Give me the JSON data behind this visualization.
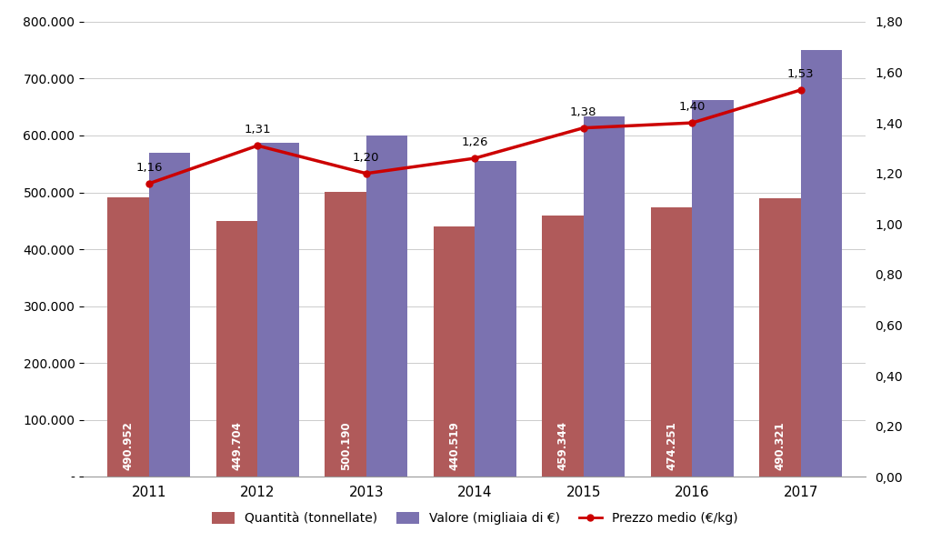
{
  "years": [
    2011,
    2012,
    2013,
    2014,
    2015,
    2016,
    2017
  ],
  "quantita": [
    490952,
    449704,
    500190,
    440519,
    459344,
    474251,
    490321
  ],
  "valore": [
    570000,
    588000,
    600000,
    555000,
    634000,
    663000,
    750000
  ],
  "prezzo_medio": [
    1.16,
    1.31,
    1.2,
    1.26,
    1.38,
    1.4,
    1.53
  ],
  "bar_color_quantita": "#b05a5a",
  "bar_color_valore": "#7b72b0",
  "line_color": "#cc0000",
  "background_color": "#ffffff",
  "ylim_left": [
    0,
    800000
  ],
  "ylim_right": [
    0,
    1.8
  ],
  "yticks_left": [
    0,
    100000,
    200000,
    300000,
    400000,
    500000,
    600000,
    700000,
    800000
  ],
  "yticks_right": [
    0.0,
    0.2,
    0.4,
    0.6,
    0.8,
    1.0,
    1.2,
    1.4,
    1.6,
    1.8
  ],
  "legend_labels": [
    "Quantità (tonnellate)",
    "Valore (migliaia di €)",
    "Prezzo medio (€/kg)"
  ],
  "bar_width": 0.38,
  "figsize": [
    10.24,
    5.96
  ],
  "dpi": 100
}
